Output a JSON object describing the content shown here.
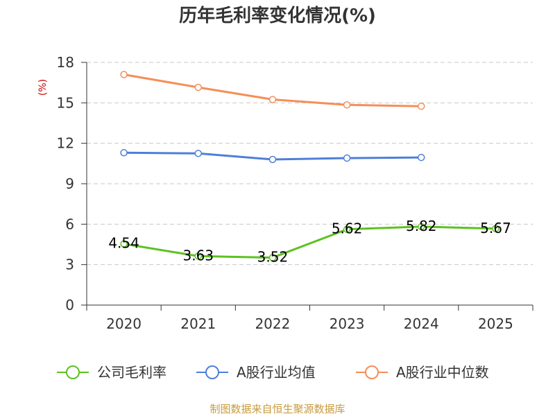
{
  "footer": "制图数据来自恒生聚源数据库",
  "colors": {
    "title": "#333333",
    "ylabel": "#cc0000",
    "footer": "#c89a3c"
  },
  "chart_data": {
    "type": "line",
    "title": "历年毛利率变化情况(%)",
    "xlabel": "",
    "ylabel": "(%)",
    "categories": [
      "2020",
      "2021",
      "2022",
      "2023",
      "2024",
      "2025"
    ],
    "ylim": [
      0,
      18
    ],
    "yticks": [
      0,
      3,
      6,
      9,
      12,
      15,
      18
    ],
    "grid": true,
    "legend_position": "bottom",
    "series": [
      {
        "name": "公司毛利率",
        "color": "#5cc21f",
        "show_labels": true,
        "values": [
          4.54,
          3.63,
          3.52,
          5.62,
          5.82,
          5.67
        ]
      },
      {
        "name": "A股行业均值",
        "color": "#4e7fd9",
        "show_labels": false,
        "values": [
          11.3,
          11.25,
          10.8,
          10.9,
          10.95,
          null
        ]
      },
      {
        "name": "A股行业中位数",
        "color": "#f58e58",
        "show_labels": false,
        "values": [
          17.1,
          16.15,
          15.25,
          14.85,
          14.75,
          null
        ]
      }
    ]
  }
}
